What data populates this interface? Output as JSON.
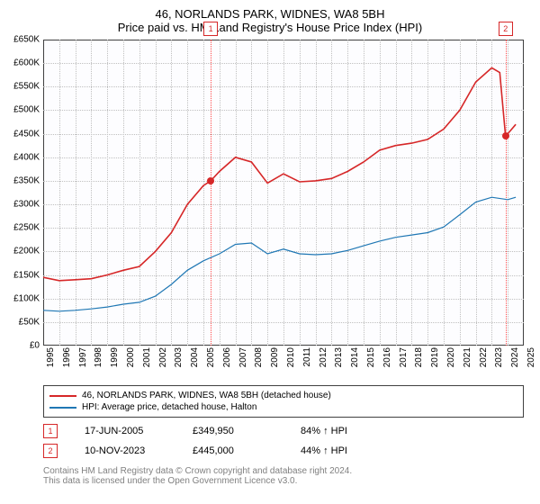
{
  "title": "46, NORLANDS PARK, WIDNES, WA8 5BH",
  "subtitle": "Price paid vs. HM Land Registry's House Price Index (HPI)",
  "colors": {
    "series1": "#d62728",
    "series2": "#1f77b4",
    "grid": "#c0c0c0",
    "axis": "#404040",
    "marker_border": "#d62728",
    "marker_line": "#ff4d4d",
    "plot_bg": "#fdfdff",
    "text": "#000000",
    "footnote": "#808080"
  },
  "chart": {
    "type": "line",
    "ylim": [
      0,
      650000
    ],
    "ytick_step": 50000,
    "yticks_labels": [
      "£0",
      "£50K",
      "£100K",
      "£150K",
      "£200K",
      "£250K",
      "£300K",
      "£350K",
      "£400K",
      "£450K",
      "£500K",
      "£550K",
      "£600K",
      "£650K"
    ],
    "xlim": [
      1995,
      2025
    ],
    "xticks": [
      1995,
      1996,
      1997,
      1998,
      1999,
      2000,
      2001,
      2002,
      2003,
      2004,
      2005,
      2006,
      2007,
      2008,
      2009,
      2010,
      2011,
      2012,
      2013,
      2014,
      2015,
      2016,
      2017,
      2018,
      2019,
      2020,
      2021,
      2022,
      2023,
      2024,
      2025
    ],
    "series1": {
      "label": "46, NORLANDS PARK, WIDNES, WA8 5BH (detached house)",
      "line_width": 1.6,
      "data": [
        [
          1995,
          145000
        ],
        [
          1996,
          138000
        ],
        [
          1997,
          140000
        ],
        [
          1998,
          142000
        ],
        [
          1999,
          150000
        ],
        [
          2000,
          160000
        ],
        [
          2001,
          168000
        ],
        [
          2002,
          200000
        ],
        [
          2003,
          240000
        ],
        [
          2004,
          300000
        ],
        [
          2005,
          340000
        ],
        [
          2005.46,
          349950
        ],
        [
          2006,
          370000
        ],
        [
          2007,
          400000
        ],
        [
          2008,
          390000
        ],
        [
          2009,
          345000
        ],
        [
          2010,
          365000
        ],
        [
          2011,
          348000
        ],
        [
          2012,
          350000
        ],
        [
          2013,
          355000
        ],
        [
          2014,
          370000
        ],
        [
          2015,
          390000
        ],
        [
          2016,
          415000
        ],
        [
          2017,
          425000
        ],
        [
          2018,
          430000
        ],
        [
          2019,
          438000
        ],
        [
          2020,
          460000
        ],
        [
          2021,
          500000
        ],
        [
          2022,
          560000
        ],
        [
          2023,
          590000
        ],
        [
          2023.5,
          580000
        ],
        [
          2023.86,
          445000
        ],
        [
          2024,
          450000
        ],
        [
          2024.5,
          470000
        ]
      ]
    },
    "series2": {
      "label": "HPI: Average price, detached house, Halton",
      "line_width": 1.2,
      "data": [
        [
          1995,
          75000
        ],
        [
          1996,
          73000
        ],
        [
          1997,
          75000
        ],
        [
          1998,
          78000
        ],
        [
          1999,
          82000
        ],
        [
          2000,
          88000
        ],
        [
          2001,
          92000
        ],
        [
          2002,
          105000
        ],
        [
          2003,
          130000
        ],
        [
          2004,
          160000
        ],
        [
          2005,
          180000
        ],
        [
          2006,
          195000
        ],
        [
          2007,
          215000
        ],
        [
          2008,
          218000
        ],
        [
          2009,
          195000
        ],
        [
          2010,
          205000
        ],
        [
          2011,
          195000
        ],
        [
          2012,
          193000
        ],
        [
          2013,
          195000
        ],
        [
          2014,
          202000
        ],
        [
          2015,
          212000
        ],
        [
          2016,
          222000
        ],
        [
          2017,
          230000
        ],
        [
          2018,
          235000
        ],
        [
          2019,
          240000
        ],
        [
          2020,
          252000
        ],
        [
          2021,
          278000
        ],
        [
          2022,
          305000
        ],
        [
          2023,
          315000
        ],
        [
          2024,
          310000
        ],
        [
          2024.5,
          315000
        ]
      ]
    },
    "markers": [
      {
        "badge": "1",
        "x": 2005.46,
        "y": 349950
      },
      {
        "badge": "2",
        "x": 2023.86,
        "y": 445000
      }
    ]
  },
  "data_rows": [
    {
      "badge": "1",
      "date": "17-JUN-2005",
      "price": "£349,950",
      "pct": "84%",
      "arrow": "↑",
      "ref": "HPI"
    },
    {
      "badge": "2",
      "date": "10-NOV-2023",
      "price": "£445,000",
      "pct": "44%",
      "arrow": "↑",
      "ref": "HPI"
    }
  ],
  "footnote_line1": "Contains HM Land Registry data © Crown copyright and database right 2024.",
  "footnote_line2": "This data is licensed under the Open Government Licence v3.0."
}
